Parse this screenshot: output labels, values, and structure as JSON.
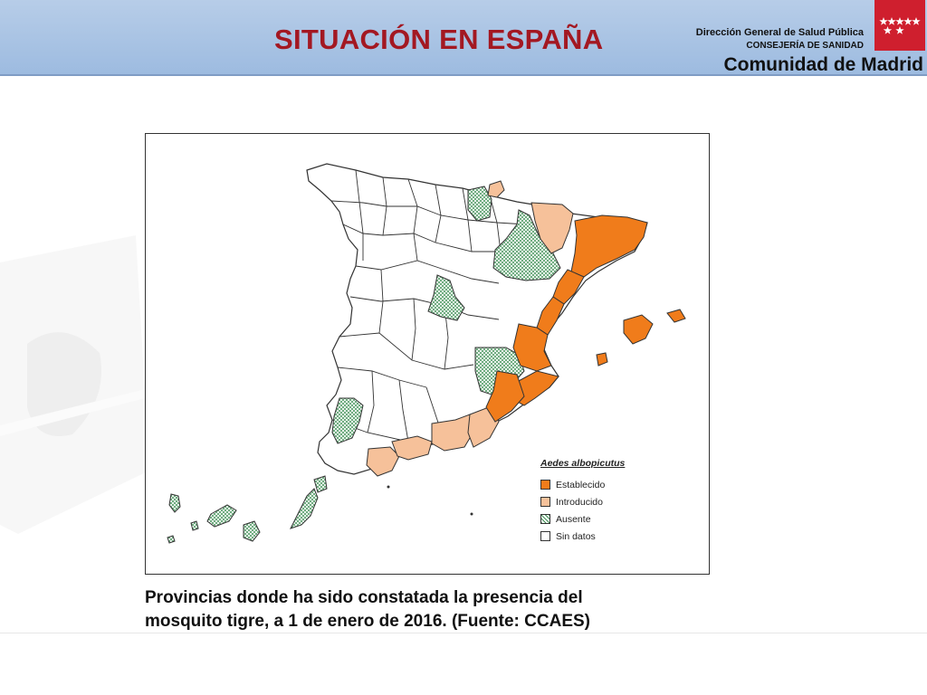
{
  "header": {
    "title": "SITUACIÓN EN ESPAÑA",
    "org_line1": "Dirección General de Salud Pública",
    "org_line2": "CONSEJERÍA DE SANIDAD",
    "org_line3": "Comunidad de Madrid"
  },
  "colors": {
    "header_band": "#9dbbe0",
    "title": "#a31822",
    "logo": "#cf1f2e",
    "establecido": "#f07c1b",
    "introducido": "#f6c19a",
    "ausente": "#cfe8d4",
    "sin_datos": "#ffffff"
  },
  "map": {
    "legend_title": "Aedes albopicutus",
    "legend": [
      {
        "key": "establecido",
        "label": "Establecido",
        "color": "#f07c1b"
      },
      {
        "key": "introducido",
        "label": "Introducido",
        "color": "#f6c19a"
      },
      {
        "key": "ausente",
        "label": "Ausente",
        "color": "#cfe8d4",
        "pattern": "crosshatch"
      },
      {
        "key": "sin_datos",
        "label": "Sin datos",
        "color": "#ffffff"
      }
    ]
  },
  "caption": {
    "line1": "Provincias donde ha sido constatada la presencia del",
    "line2": "mosquito tigre, a 1 de enero de 2016. (Fuente: CCAES)"
  }
}
